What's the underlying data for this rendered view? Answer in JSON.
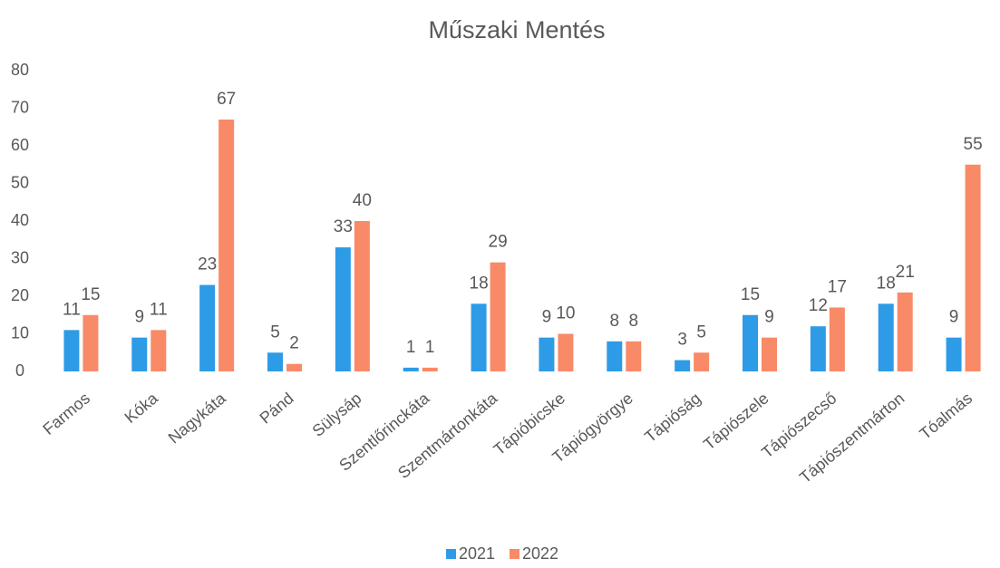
{
  "chart_data": {
    "type": "bar",
    "title": "Műszaki Mentés",
    "categories": [
      "Farmos",
      "Kóka",
      "Nagykáta",
      "Pánd",
      "Sülysáp",
      "Szentlőrinckáta",
      "Szentmártonkáta",
      "Tápióbicske",
      "Tápiógyörgye",
      "Tápióság",
      "Tápiószele",
      "Tápiószecső",
      "Tápiószentmárton",
      "Tóalmás"
    ],
    "series": [
      {
        "name": "2021",
        "color": "#2e9be6",
        "values": [
          11,
          9,
          23,
          5,
          33,
          1,
          18,
          9,
          8,
          3,
          15,
          12,
          18,
          9
        ]
      },
      {
        "name": "2022",
        "color": "#f88a67",
        "values": [
          15,
          11,
          67,
          2,
          40,
          1,
          29,
          10,
          8,
          5,
          9,
          17,
          21,
          55
        ]
      }
    ],
    "ylim": [
      0,
      80
    ],
    "yticks": [
      0,
      10,
      20,
      30,
      40,
      50,
      60,
      70,
      80
    ],
    "grid": false,
    "legend": "bottom"
  }
}
